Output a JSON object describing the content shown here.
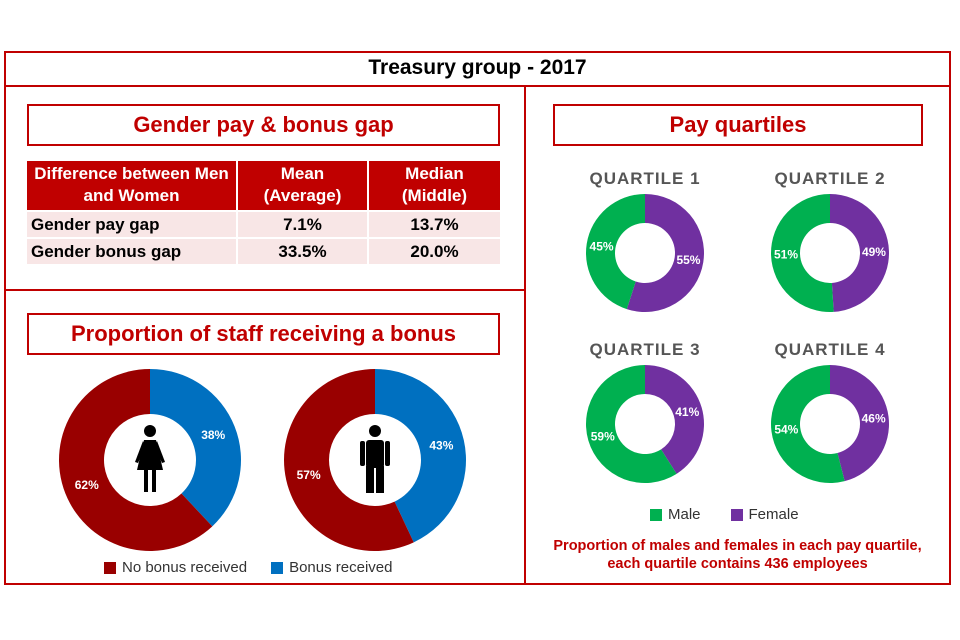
{
  "title": "Treasury group - 2017",
  "gap_section": {
    "title": "Gender pay & bonus gap",
    "headers": [
      "Difference between Men and Women",
      "Mean (Average)",
      "Median (Middle)"
    ],
    "rows": [
      [
        "Gender pay gap",
        "7.1%",
        "13.7%"
      ],
      [
        "Gender bonus gap",
        "33.5%",
        "20.0%"
      ]
    ]
  },
  "bonus_section": {
    "title": "Proportion of staff receiving a bonus",
    "legend": [
      {
        "label": "No bonus received",
        "color": "#990000"
      },
      {
        "label": "Bonus received",
        "color": "#0070c0"
      }
    ]
  },
  "quartile_section": {
    "title": "Pay quartiles",
    "legend": [
      {
        "label": "Male",
        "color": "#00b050"
      },
      {
        "label": "Female",
        "color": "#7030a0"
      }
    ],
    "note": "Proportion of males and females in each pay quartile, each quartile contains 436 employees"
  },
  "colors": {
    "accent": "#c00000",
    "male": "#00b050",
    "female": "#7030a0",
    "no_bonus": "#990000",
    "bonus": "#0070c0"
  },
  "chart_data": [
    {
      "type": "pie",
      "variant": "donut",
      "group": "female",
      "icon": "female-icon",
      "series": [
        {
          "name": "Bonus received",
          "value": 38
        },
        {
          "name": "No bonus received",
          "value": 62
        }
      ]
    },
    {
      "type": "pie",
      "variant": "donut",
      "group": "male",
      "icon": "male-icon",
      "series": [
        {
          "name": "Bonus received",
          "value": 43
        },
        {
          "name": "No bonus received",
          "value": 57
        }
      ]
    },
    {
      "type": "pie",
      "variant": "donut",
      "title": "QUARTILE 1",
      "series": [
        {
          "name": "Female",
          "value": 55
        },
        {
          "name": "Male",
          "value": 45
        }
      ]
    },
    {
      "type": "pie",
      "variant": "donut",
      "title": "QUARTILE 2",
      "series": [
        {
          "name": "Female",
          "value": 49
        },
        {
          "name": "Male",
          "value": 51
        }
      ]
    },
    {
      "type": "pie",
      "variant": "donut",
      "title": "QUARTILE 3",
      "series": [
        {
          "name": "Female",
          "value": 41
        },
        {
          "name": "Male",
          "value": 59
        }
      ]
    },
    {
      "type": "pie",
      "variant": "donut",
      "title": "QUARTILE 4",
      "series": [
        {
          "name": "Female",
          "value": 46
        },
        {
          "name": "Male",
          "value": 54
        }
      ]
    }
  ]
}
